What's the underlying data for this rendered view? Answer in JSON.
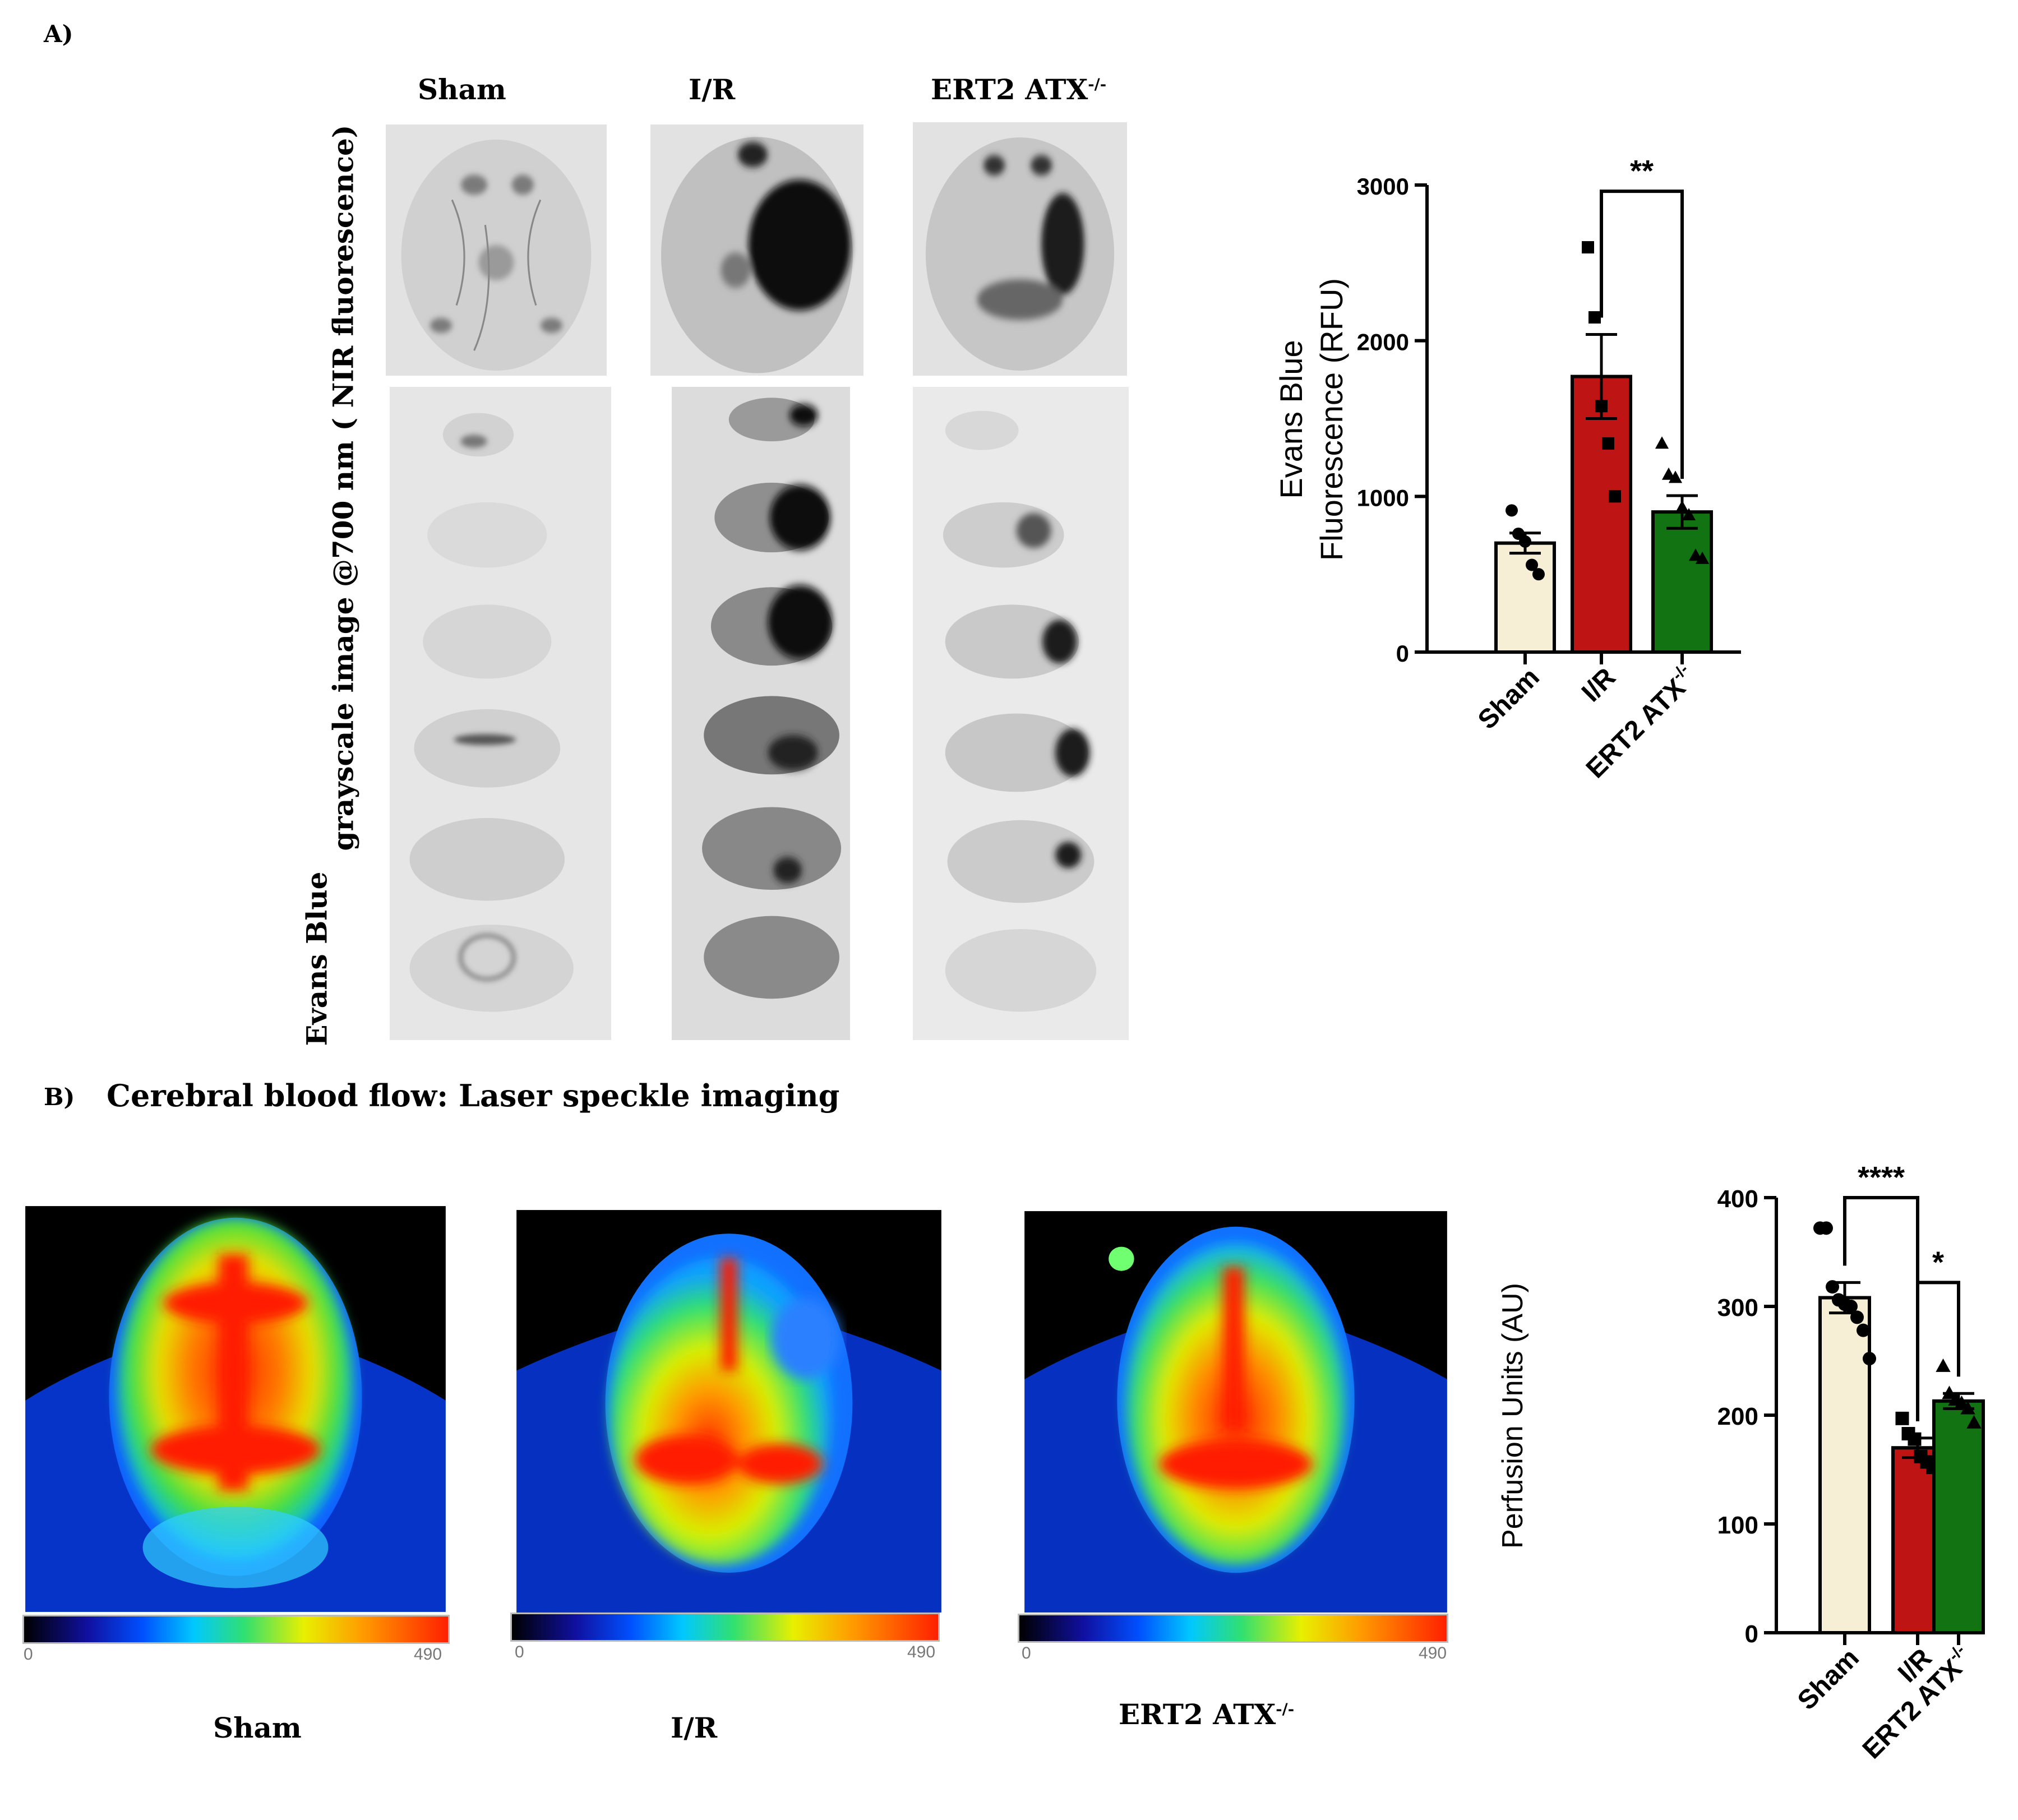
{
  "panel_a": {
    "label": "A)",
    "col_titles": {
      "sham": "Sham",
      "ir": "I/R",
      "ert2": "ERT2 ATX"
    },
    "sup": "-/-",
    "y_label_1": "Evans Blue",
    "y_label_2": "grayscale image @700 nm ( NIR fluorescence)"
  },
  "panel_b": {
    "label": "B)",
    "title": "Cerebral blood flow: Laser speckle imaging",
    "captions": {
      "sham": "Sham",
      "ir": "I/R",
      "ert2": "ERT2 ATX"
    },
    "sup": "-/-",
    "colorbar": {
      "min": "0",
      "max": "490"
    }
  },
  "colors": {
    "sham": "#f6efd6",
    "ir": "#bf1414",
    "ert2": "#127312",
    "ink": "#000000"
  },
  "chart_data": [
    {
      "type": "bar",
      "title": "",
      "ylabel": "Evans Blue Fluorescence (RFU)",
      "ylabel_lines": [
        "Evans Blue",
        "Fluorescence (RFU)"
      ],
      "categories": [
        "Sham",
        "I/R",
        "ERT2 ATX-/-"
      ],
      "category_labels": [
        "Sham",
        "I/R",
        "ERT2 ATX"
      ],
      "sup": "-/-",
      "means": [
        700,
        1770,
        900
      ],
      "sem": [
        65,
        270,
        105
      ],
      "points": [
        [
          910,
          760,
          710,
          560,
          500
        ],
        [
          2600,
          2150,
          1580,
          1340,
          1000
        ],
        [
          1340,
          1140,
          1120,
          930,
          880,
          620,
          600
        ]
      ],
      "markers": [
        "circle",
        "square",
        "triangle"
      ],
      "ylim": [
        0,
        3000
      ],
      "yticks": [
        0,
        1000,
        2000,
        3000
      ],
      "significance": [
        {
          "from": 1,
          "to": 2,
          "label": "**",
          "y": 2960
        }
      ]
    },
    {
      "type": "bar",
      "title": "",
      "ylabel": "Perfusion Units (AU)",
      "categories": [
        "Sham",
        "I/R",
        "ERT2 ATX-/-"
      ],
      "category_labels": [
        "Sham",
        "I/R",
        "ERT2 ATX"
      ],
      "sup": "-/-",
      "means": [
        308,
        170,
        213
      ],
      "sem": [
        14,
        9,
        7
      ],
      "points": [
        [
          372,
          372,
          318,
          306,
          302,
          300,
          290,
          278,
          252
        ],
        [
          197,
          183,
          178,
          162,
          157,
          152
        ],
        [
          245,
          220,
          214,
          211,
          206,
          193
        ]
      ],
      "markers": [
        "circle",
        "square",
        "triangle"
      ],
      "ylim": [
        0,
        400
      ],
      "yticks": [
        0,
        100,
        200,
        300,
        400
      ],
      "significance": [
        {
          "from": 0,
          "to": 1,
          "label": "****",
          "y": 400
        },
        {
          "from": 1,
          "to": 2,
          "label": "*",
          "y": 322
        }
      ]
    }
  ]
}
